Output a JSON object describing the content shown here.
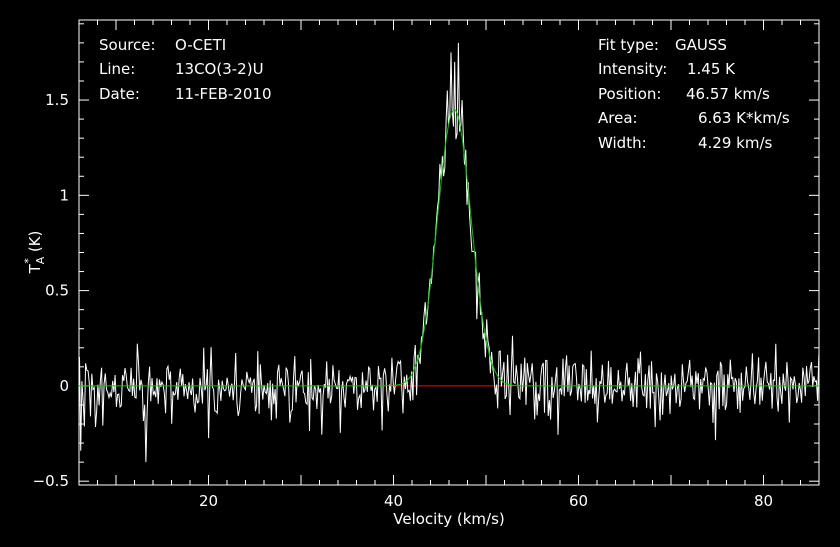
{
  "annotations": {
    "source_label": "Source:",
    "source_value": "O-CETI",
    "line_label": "Line:",
    "line_value": "13CO(3-2)U",
    "date_label": "Date:",
    "date_value": "11-FEB-2010",
    "fit_type_label": "Fit type:",
    "fit_type_value": "GAUSS",
    "intensity_label": "Intensity:",
    "intensity_value": "1.45 K",
    "position_label": "Position:",
    "position_value": "46.57 km/s",
    "area_label": "Area:",
    "area_value": "6.63 K*km/s",
    "width_label": "Width:",
    "width_value": "4.29 km/s"
  },
  "chart_data": {
    "type": "line",
    "xlabel": "Velocity (km/s)",
    "ylabel": "T*A (K)",
    "ylabel_main": "T",
    "ylabel_sup": "*",
    "ylabel_sub": "A",
    "ylabel_unit": "(K)",
    "xlim": [
      6,
      86
    ],
    "ylim": [
      -0.52,
      1.92
    ],
    "x_ticks": [
      20,
      40,
      60,
      80
    ],
    "x_tick_labels": [
      "20",
      "40",
      "60",
      "80"
    ],
    "y_ticks": [
      -0.5,
      0,
      0.5,
      1,
      1.5
    ],
    "y_tick_labels": [
      "−0.5",
      "0",
      "0.5",
      "1",
      "1.5"
    ],
    "grid": false,
    "colors": {
      "background": "#000000",
      "spectrum": "#ffffff",
      "fit": "#00c800",
      "fit_baseline": "#ff0000",
      "axes": "#ffffff"
    },
    "fit": {
      "type": "gauss",
      "amplitude_K": 1.45,
      "center_kms": 46.57,
      "fwhm_kms": 4.29,
      "baseline_range_kms": [
        39.5,
        53
      ]
    },
    "series": [
      {
        "noise_sigma_K": 0.09,
        "channel_width_kms": 0.133,
        "key_points": [
          {
            "x": 6.2,
            "y": -0.34
          },
          {
            "x": 13.2,
            "y": -0.4
          },
          {
            "x": 44.5,
            "y": 0.75
          },
          {
            "x": 45.8,
            "y": 1.55
          },
          {
            "x": 46.2,
            "y": 1.75
          },
          {
            "x": 46.6,
            "y": 1.7
          },
          {
            "x": 47.0,
            "y": 1.8
          },
          {
            "x": 47.4,
            "y": 1.5
          },
          {
            "x": 48.0,
            "y": 0.95
          },
          {
            "x": 49.0,
            "y": 0.35
          },
          {
            "x": 50.0,
            "y": 0.15
          }
        ]
      }
    ]
  }
}
